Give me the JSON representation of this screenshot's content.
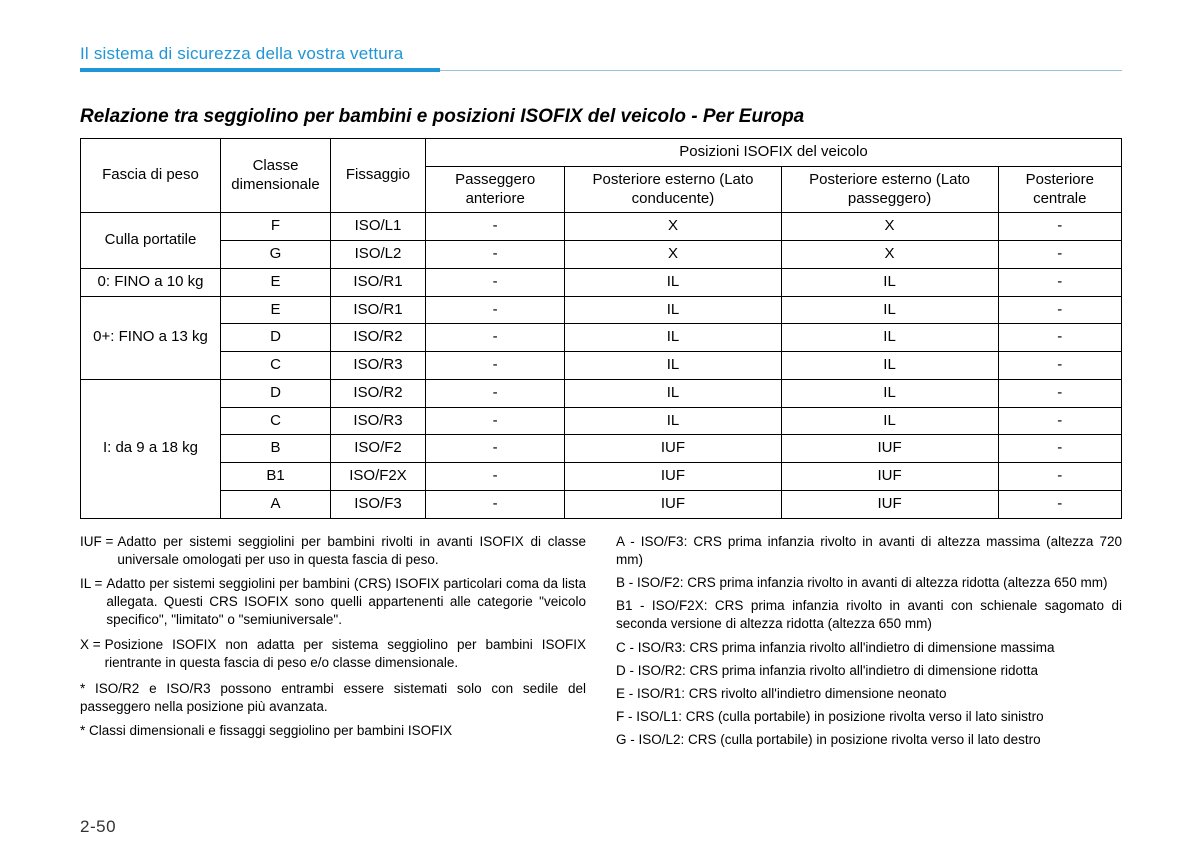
{
  "header": {
    "section_title": "Il sistema di sicurezza della vostra vettura",
    "subtitle": "Relazione tra seggiolino per bambini e posizioni ISOFIX del veicolo - Per Europa"
  },
  "table": {
    "columns": {
      "weight": "Fascia di peso",
      "class": "Classe dimensionale",
      "fix": "Fissaggio",
      "pos_group": "Posizioni ISOFIX del veicolo",
      "pos_front": "Passeggero anteriore",
      "pos_rear_drv": "Posteriore esterno (Lato conducente)",
      "pos_rear_pass": "Posteriore esterno (Lato passeggero)",
      "pos_rear_ctr": "Posteriore centrale"
    },
    "rows": [
      {
        "wg": "Culla portatile",
        "span": 2,
        "cls": "F",
        "fix": "ISO/L1",
        "p": [
          "-",
          "X",
          "X",
          "-"
        ]
      },
      {
        "cls": "G",
        "fix": "ISO/L2",
        "p": [
          "-",
          "X",
          "X",
          "-"
        ]
      },
      {
        "wg": "0: FINO a 10 kg",
        "span": 1,
        "cls": "E",
        "fix": "ISO/R1",
        "p": [
          "-",
          "IL",
          "IL",
          "-"
        ]
      },
      {
        "wg": "0+: FINO a 13 kg",
        "span": 3,
        "cls": "E",
        "fix": "ISO/R1",
        "p": [
          "-",
          "IL",
          "IL",
          "-"
        ]
      },
      {
        "cls": "D",
        "fix": "ISO/R2",
        "p": [
          "-",
          "IL",
          "IL",
          "-"
        ]
      },
      {
        "cls": "C",
        "fix": "ISO/R3",
        "p": [
          "-",
          "IL",
          "IL",
          "-"
        ]
      },
      {
        "wg": "I: da 9 a 18 kg",
        "span": 5,
        "cls": "D",
        "fix": "ISO/R2",
        "p": [
          "-",
          "IL",
          "IL",
          "-"
        ]
      },
      {
        "cls": "C",
        "fix": "ISO/R3",
        "p": [
          "-",
          "IL",
          "IL",
          "-"
        ]
      },
      {
        "cls": "B",
        "fix": "ISO/F2",
        "p": [
          "-",
          "IUF",
          "IUF",
          "-"
        ]
      },
      {
        "cls": "B1",
        "fix": "ISO/F2X",
        "p": [
          "-",
          "IUF",
          "IUF",
          "-"
        ]
      },
      {
        "cls": "A",
        "fix": "ISO/F3",
        "p": [
          "-",
          "IUF",
          "IUF",
          "-"
        ]
      }
    ]
  },
  "legend_left": {
    "iuf_lab": "IUF = ",
    "iuf_txt": "Adatto per sistemi seggiolini per bambini rivolti in avanti ISOFIX di classe universale omologati per uso in questa fascia di peso.",
    "il_lab": "IL = ",
    "il_txt": "Adatto per sistemi seggiolini per bambini (CRS) ISOFIX particolari coma da lista allegata. Questi CRS ISOFIX sono quelli appartenenti alle categorie \"veicolo specifico\", \"limitato\" o \"semiuniversale\".",
    "x_lab": "X = ",
    "x_txt": "Posizione ISOFIX non adatta per sistema seggiolino per bambini ISOFIX rientrante in questa fascia di peso e/o classe dimensionale.",
    "note1": "* ISO/R2 e ISO/R3 possono entrambi essere sistemati solo con sedile del passeggero nella posizione più avanzata.",
    "note2": "* Classi dimensionali e fissaggi seggiolino per bambini ISOFIX"
  },
  "legend_right": {
    "a": "A - ISO/F3: CRS prima infanzia rivolto in avanti di altezza massima (altezza 720 mm)",
    "b": "B - ISO/F2: CRS prima infanzia rivolto in avanti di altezza ridotta (altezza 650 mm)",
    "b1": "B1 - ISO/F2X: CRS prima infanzia rivolto in avanti con schienale sagomato di seconda versione di altezza ridotta (altezza 650 mm)",
    "c": "C - ISO/R3: CRS prima infanzia rivolto all'indietro di dimensione massima",
    "d": "D - ISO/R2: CRS prima infanzia rivolto all'indietro di dimensione ridotta",
    "e": "E - ISO/R1: CRS rivolto all'indietro dimensione neonato",
    "f": "F - ISO/L1: CRS (culla portabile) in posizione rivolta verso il lato sinistro",
    "g": "G - ISO/L2: CRS (culla portabile) in posizione rivolta verso il lato destro"
  },
  "page_number": "2-50",
  "style": {
    "header_color": "#2196d6",
    "table_border_color": "#000000",
    "background_color": "#ffffff"
  }
}
